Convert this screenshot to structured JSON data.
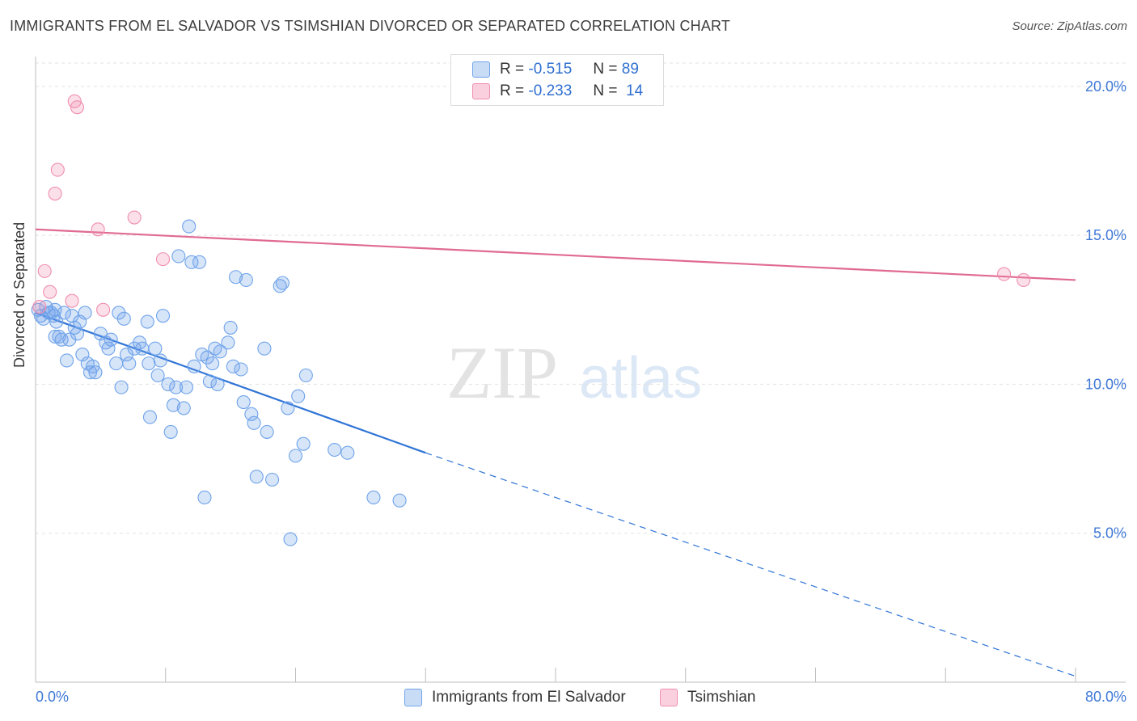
{
  "title": "IMMIGRANTS FROM EL SALVADOR VS TSIMSHIAN DIVORCED OR SEPARATED CORRELATION CHART",
  "source": "Source: ZipAtlas.com",
  "watermark": {
    "zip": "ZIP",
    "atlas": "atlas"
  },
  "legend": {
    "r_label": "R =",
    "n_label": "N =",
    "entries": [
      {
        "r": "-0.515",
        "n": "89",
        "color": "#6fa3ea"
      },
      {
        "r": "-0.233",
        "n": "14",
        "color": "#f08eb0"
      }
    ]
  },
  "chart_data": {
    "type": "scatter",
    "title": "IMMIGRANTS FROM EL SALVADOR VS TSIMSHIAN DIVORCED OR SEPARATED CORRELATION CHART",
    "xlabel": "",
    "ylabel": "Divorced or Separated",
    "xlim": [
      0,
      80
    ],
    "ylim": [
      0,
      21
    ],
    "x_tick_labels": [
      "0.0%",
      "80.0%"
    ],
    "y_ticks": [
      5,
      10,
      15,
      20
    ],
    "y_tick_labels": [
      "5.0%",
      "10.0%",
      "15.0%",
      "20.0%"
    ],
    "grid": "horizontal dashed",
    "legend_position": "top-center and bottom",
    "series": [
      {
        "name": "Immigrants from El Salvador",
        "color": "#6fa3ea",
        "trend": {
          "x0": 0,
          "y0": 12.4,
          "x1": 30,
          "y1": 7.7,
          "dashed_to_x": 80,
          "dashed_to_y": 0.2
        },
        "points": [
          [
            0.2,
            12.5
          ],
          [
            0.4,
            12.3
          ],
          [
            0.6,
            12.2
          ],
          [
            0.8,
            12.6
          ],
          [
            1.0,
            12.4
          ],
          [
            1.2,
            12.4
          ],
          [
            1.4,
            12.3
          ],
          [
            1.5,
            11.6
          ],
          [
            1.5,
            12.5
          ],
          [
            1.6,
            12.1
          ],
          [
            1.8,
            11.6
          ],
          [
            2.0,
            11.5
          ],
          [
            2.2,
            12.4
          ],
          [
            2.4,
            10.8
          ],
          [
            2.6,
            11.5
          ],
          [
            2.8,
            12.3
          ],
          [
            3.0,
            11.9
          ],
          [
            3.2,
            11.7
          ],
          [
            3.4,
            12.1
          ],
          [
            3.6,
            11.0
          ],
          [
            3.8,
            12.4
          ],
          [
            4.0,
            10.7
          ],
          [
            4.2,
            10.4
          ],
          [
            4.4,
            10.6
          ],
          [
            4.6,
            10.4
          ],
          [
            5.0,
            11.7
          ],
          [
            5.4,
            11.4
          ],
          [
            5.6,
            11.2
          ],
          [
            5.8,
            11.5
          ],
          [
            6.2,
            10.7
          ],
          [
            6.4,
            12.4
          ],
          [
            6.6,
            9.9
          ],
          [
            6.8,
            12.2
          ],
          [
            7.0,
            11.0
          ],
          [
            7.2,
            10.7
          ],
          [
            7.6,
            11.2
          ],
          [
            8.0,
            11.4
          ],
          [
            8.2,
            11.2
          ],
          [
            8.6,
            12.1
          ],
          [
            8.7,
            10.7
          ],
          [
            8.8,
            8.9
          ],
          [
            9.2,
            11.2
          ],
          [
            9.4,
            10.3
          ],
          [
            9.6,
            10.8
          ],
          [
            9.8,
            12.3
          ],
          [
            10.2,
            10.0
          ],
          [
            10.4,
            8.4
          ],
          [
            10.6,
            9.3
          ],
          [
            10.8,
            9.9
          ],
          [
            11.0,
            14.3
          ],
          [
            11.4,
            9.2
          ],
          [
            11.6,
            9.9
          ],
          [
            11.8,
            15.3
          ],
          [
            12.0,
            14.1
          ],
          [
            12.2,
            10.6
          ],
          [
            12.6,
            14.1
          ],
          [
            12.8,
            11.0
          ],
          [
            13.0,
            6.2
          ],
          [
            13.2,
            10.9
          ],
          [
            13.4,
            10.1
          ],
          [
            13.6,
            10.7
          ],
          [
            13.8,
            11.2
          ],
          [
            14.0,
            10.0
          ],
          [
            14.2,
            11.1
          ],
          [
            14.8,
            11.4
          ],
          [
            15.0,
            11.9
          ],
          [
            15.2,
            10.6
          ],
          [
            15.4,
            13.6
          ],
          [
            15.8,
            10.5
          ],
          [
            16.0,
            9.4
          ],
          [
            16.2,
            13.5
          ],
          [
            16.6,
            9.0
          ],
          [
            16.8,
            8.7
          ],
          [
            17.0,
            6.9
          ],
          [
            17.6,
            11.2
          ],
          [
            17.8,
            8.4
          ],
          [
            18.2,
            6.8
          ],
          [
            18.8,
            13.3
          ],
          [
            19.0,
            13.4
          ],
          [
            19.4,
            9.2
          ],
          [
            19.6,
            4.8
          ],
          [
            20.0,
            7.6
          ],
          [
            20.2,
            9.6
          ],
          [
            20.6,
            8.0
          ],
          [
            20.8,
            10.3
          ],
          [
            23.0,
            7.8
          ],
          [
            24.0,
            7.7
          ],
          [
            26.0,
            6.2
          ],
          [
            28.0,
            6.1
          ]
        ]
      },
      {
        "name": "Tsimshian",
        "color": "#f08eb0",
        "trend": {
          "x0": 0,
          "y0": 15.2,
          "x1": 80,
          "y1": 13.5
        },
        "points": [
          [
            0.3,
            12.6
          ],
          [
            0.7,
            13.8
          ],
          [
            1.1,
            13.1
          ],
          [
            1.5,
            16.4
          ],
          [
            1.7,
            17.2
          ],
          [
            2.8,
            12.8
          ],
          [
            3.0,
            19.5
          ],
          [
            3.2,
            19.3
          ],
          [
            4.8,
            15.2
          ],
          [
            5.2,
            12.5
          ],
          [
            7.6,
            15.6
          ],
          [
            9.8,
            14.2
          ],
          [
            74.5,
            13.7
          ],
          [
            76.0,
            13.5
          ]
        ]
      }
    ]
  }
}
